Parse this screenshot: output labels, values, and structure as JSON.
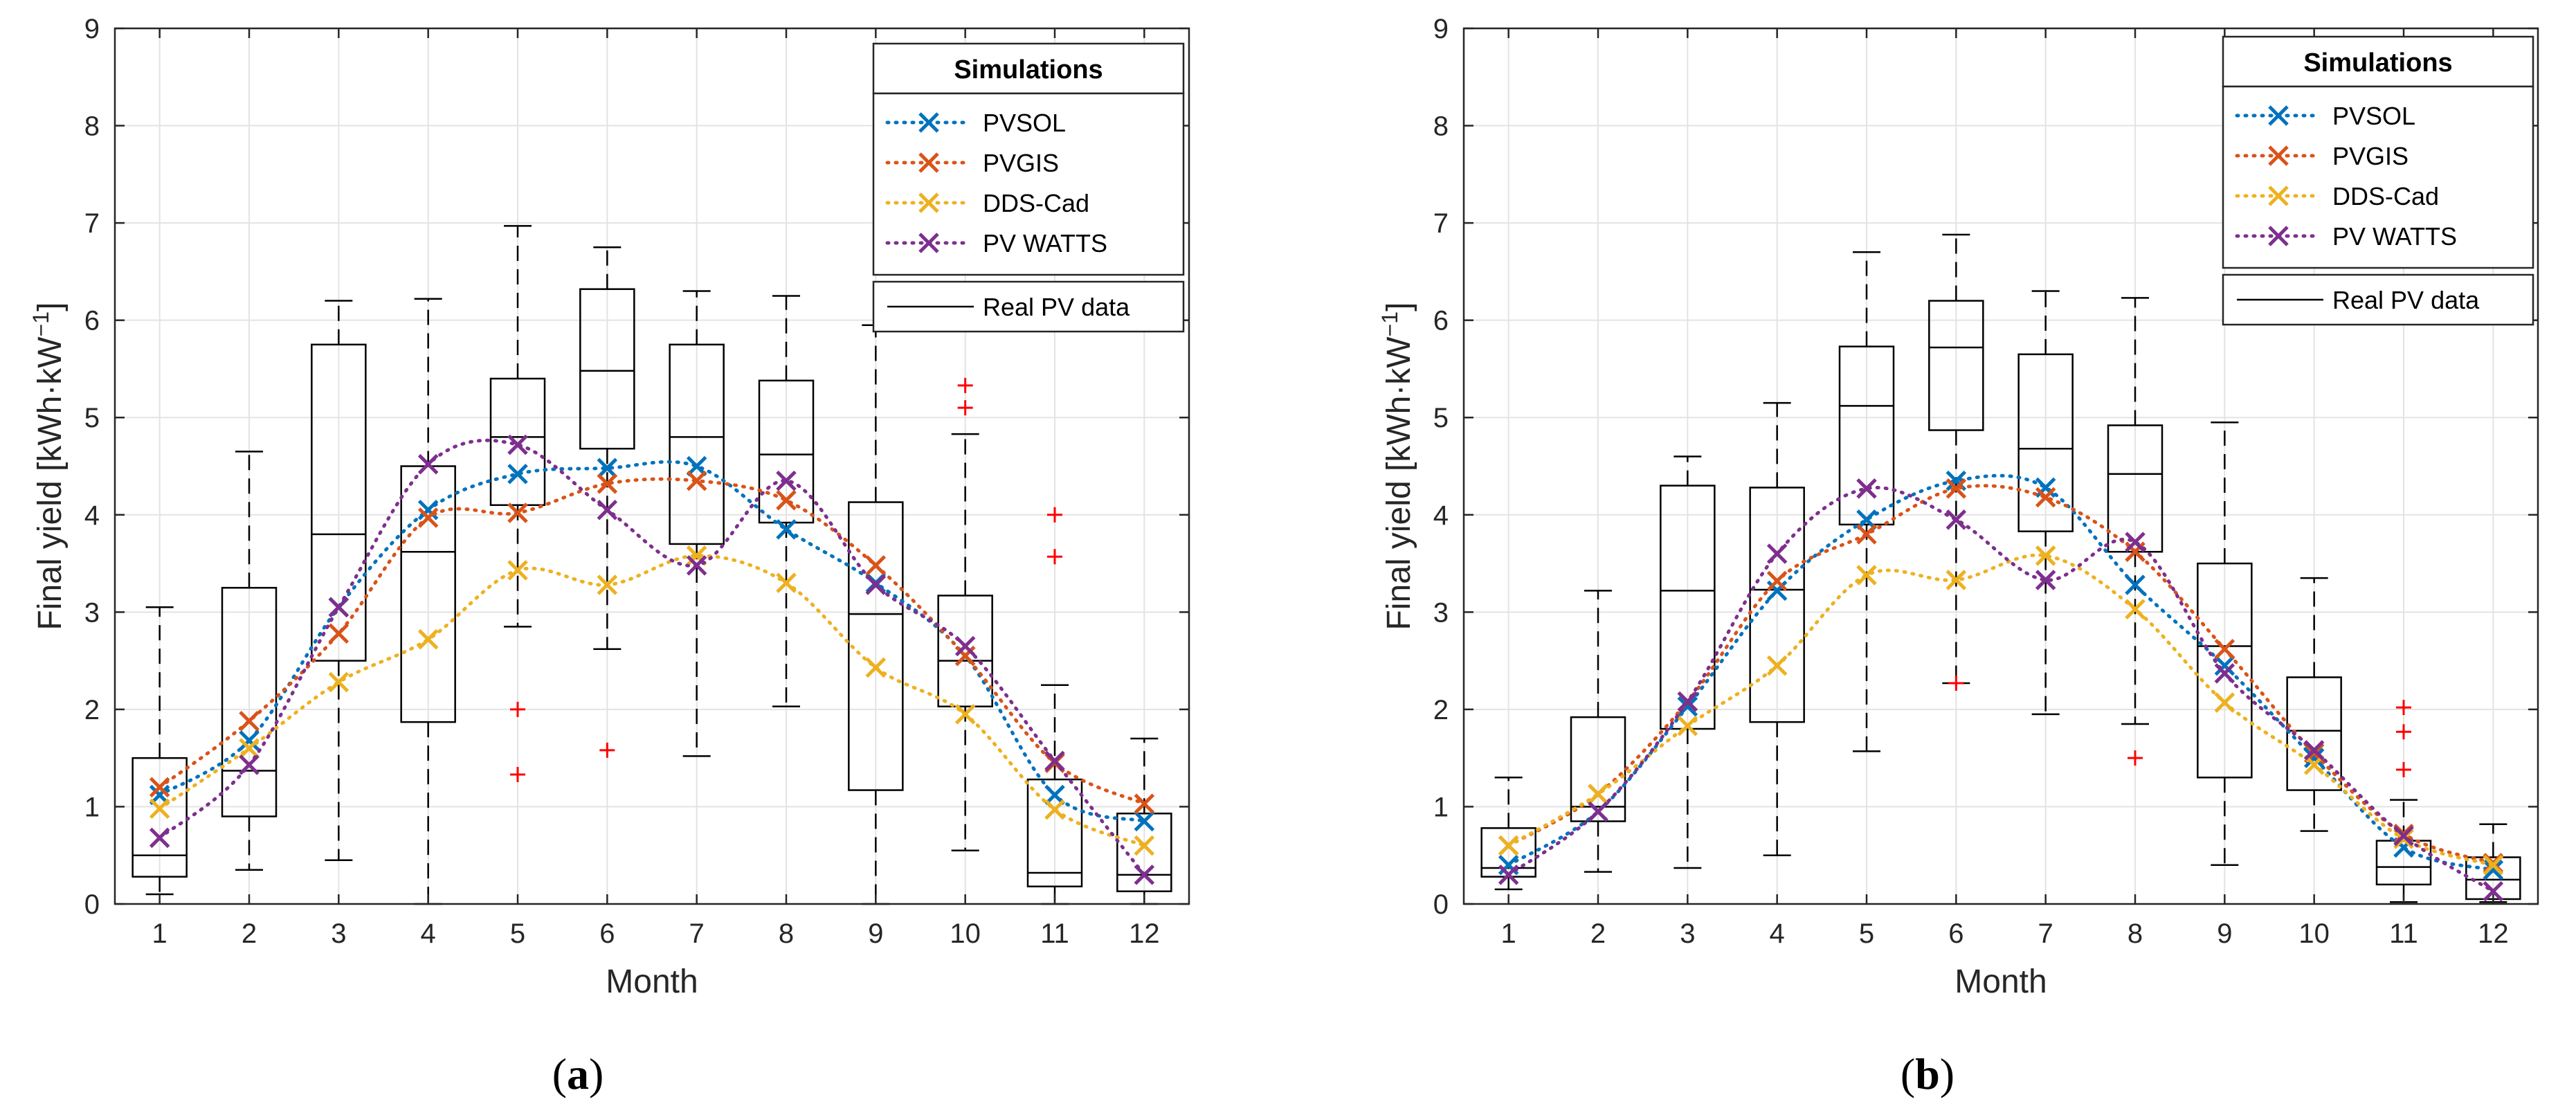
{
  "chart_data": [
    {
      "type": "box",
      "panel_label_prefix": "(",
      "panel_label": "a",
      "panel_label_suffix": ")",
      "xlabel": "Month",
      "ylabel": "Final yield [kWh·kW",
      "ylabel_sup": "−1",
      "ylabel_end": "]",
      "xticks": [
        "1",
        "2",
        "3",
        "4",
        "5",
        "6",
        "7",
        "8",
        "9",
        "10",
        "11",
        "12"
      ],
      "yticks": [
        "0",
        "1",
        "2",
        "3",
        "4",
        "5",
        "6",
        "7",
        "8",
        "9"
      ],
      "ylim": [
        0,
        9
      ],
      "grid": true,
      "legend": {
        "title": "Simulations",
        "position": "top-right",
        "entries": [
          "PVSOL",
          "PVGIS",
          "DDS-Cad",
          "PV WATTS"
        ],
        "real_label": "Real PV data"
      },
      "boxes": [
        {
          "month": 1,
          "lw": 0.1,
          "q1": 0.28,
          "med": 0.5,
          "q3": 1.5,
          "uw": 3.05,
          "outliers": []
        },
        {
          "month": 2,
          "lw": 0.35,
          "q1": 0.9,
          "med": 1.37,
          "q3": 3.25,
          "uw": 4.65,
          "outliers": []
        },
        {
          "month": 3,
          "lw": 0.45,
          "q1": 2.5,
          "med": 3.8,
          "q3": 5.75,
          "uw": 6.2,
          "outliers": []
        },
        {
          "month": 4,
          "lw": 0.0,
          "q1": 1.87,
          "med": 3.62,
          "q3": 4.5,
          "uw": 6.22,
          "outliers": []
        },
        {
          "month": 5,
          "lw": 2.85,
          "q1": 4.1,
          "med": 4.8,
          "q3": 5.4,
          "uw": 6.97,
          "outliers": [
            2.0,
            1.33
          ]
        },
        {
          "month": 6,
          "lw": 2.62,
          "q1": 4.68,
          "med": 5.48,
          "q3": 6.32,
          "uw": 6.75,
          "outliers": [
            1.58
          ]
        },
        {
          "month": 7,
          "lw": 1.52,
          "q1": 3.7,
          "med": 4.8,
          "q3": 5.75,
          "uw": 6.3,
          "outliers": []
        },
        {
          "month": 8,
          "lw": 2.03,
          "q1": 3.92,
          "med": 4.62,
          "q3": 5.38,
          "uw": 6.25,
          "outliers": []
        },
        {
          "month": 9,
          "lw": 0.0,
          "q1": 1.17,
          "med": 2.98,
          "q3": 4.13,
          "uw": 5.95,
          "outliers": []
        },
        {
          "month": 10,
          "lw": 0.55,
          "q1": 2.03,
          "med": 2.5,
          "q3": 3.17,
          "uw": 4.83,
          "outliers": [
            5.33,
            5.1
          ]
        },
        {
          "month": 11,
          "lw": 0.0,
          "q1": 0.18,
          "med": 0.32,
          "q3": 1.28,
          "uw": 2.25,
          "outliers": [
            4.0,
            3.57
          ]
        },
        {
          "month": 12,
          "lw": 0.0,
          "q1": 0.13,
          "med": 0.3,
          "q3": 0.93,
          "uw": 1.7,
          "outliers": []
        }
      ],
      "series": [
        {
          "name": "PVSOL",
          "color": "#0072BD",
          "values": [
            1.12,
            1.68,
            3.05,
            4.05,
            4.42,
            4.48,
            4.5,
            3.85,
            3.3,
            2.55,
            1.12,
            0.85
          ]
        },
        {
          "name": "PVGIS",
          "color": "#D95319",
          "values": [
            1.2,
            1.88,
            2.78,
            3.97,
            4.02,
            4.32,
            4.35,
            4.15,
            3.48,
            2.55,
            1.45,
            1.03
          ]
        },
        {
          "name": "DDS-Cad",
          "color": "#EDB120",
          "values": [
            0.98,
            1.6,
            2.28,
            2.72,
            3.43,
            3.28,
            3.58,
            3.3,
            2.43,
            1.95,
            0.97,
            0.6
          ]
        },
        {
          "name": "PV WATTS",
          "color": "#7E2F8E",
          "values": [
            0.68,
            1.43,
            3.05,
            4.52,
            4.72,
            4.05,
            3.48,
            4.35,
            3.28,
            2.65,
            1.47,
            0.3
          ]
        }
      ]
    },
    {
      "type": "box",
      "panel_label_prefix": "(",
      "panel_label": "b",
      "panel_label_suffix": ")",
      "xlabel": "Month",
      "ylabel": "Final yield [kWh·kW",
      "ylabel_sup": "−1",
      "ylabel_end": "]",
      "xticks": [
        "1",
        "2",
        "3",
        "4",
        "5",
        "6",
        "7",
        "8",
        "9",
        "10",
        "11",
        "12"
      ],
      "yticks": [
        "0",
        "1",
        "2",
        "3",
        "4",
        "5",
        "6",
        "7",
        "8",
        "9"
      ],
      "ylim": [
        0,
        9
      ],
      "grid": true,
      "legend": {
        "title": "Simulations",
        "position": "top-right",
        "entries": [
          "PVSOL",
          "PVGIS",
          "DDS-Cad",
          "PV WATTS"
        ],
        "real_label": "Real PV data"
      },
      "boxes": [
        {
          "month": 1,
          "lw": 0.15,
          "q1": 0.28,
          "med": 0.37,
          "q3": 0.78,
          "uw": 1.3,
          "outliers": []
        },
        {
          "month": 2,
          "lw": 0.33,
          "q1": 0.85,
          "med": 1.0,
          "q3": 1.92,
          "uw": 3.22,
          "outliers": []
        },
        {
          "month": 3,
          "lw": 0.37,
          "q1": 1.8,
          "med": 3.22,
          "q3": 4.3,
          "uw": 4.6,
          "outliers": []
        },
        {
          "month": 4,
          "lw": 0.5,
          "q1": 1.87,
          "med": 3.23,
          "q3": 4.28,
          "uw": 5.15,
          "outliers": []
        },
        {
          "month": 5,
          "lw": 1.57,
          "q1": 3.9,
          "med": 5.12,
          "q3": 5.73,
          "uw": 6.7,
          "outliers": []
        },
        {
          "month": 6,
          "lw": 2.27,
          "q1": 4.87,
          "med": 5.72,
          "q3": 6.2,
          "uw": 6.88,
          "outliers": [
            2.27
          ]
        },
        {
          "month": 7,
          "lw": 1.95,
          "q1": 3.83,
          "med": 4.68,
          "q3": 5.65,
          "uw": 6.3,
          "outliers": []
        },
        {
          "month": 8,
          "lw": 1.85,
          "q1": 3.62,
          "med": 4.42,
          "q3": 4.92,
          "uw": 6.23,
          "outliers": [
            1.5
          ]
        },
        {
          "month": 9,
          "lw": 0.4,
          "q1": 1.3,
          "med": 2.65,
          "q3": 3.5,
          "uw": 4.95,
          "outliers": []
        },
        {
          "month": 10,
          "lw": 0.75,
          "q1": 1.17,
          "med": 1.78,
          "q3": 2.33,
          "uw": 3.35,
          "outliers": []
        },
        {
          "month": 11,
          "lw": 0.02,
          "q1": 0.2,
          "med": 0.38,
          "q3": 0.65,
          "uw": 1.07,
          "outliers": [
            2.02,
            1.77,
            1.38
          ]
        },
        {
          "month": 12,
          "lw": 0.02,
          "q1": 0.05,
          "med": 0.25,
          "q3": 0.48,
          "uw": 0.82,
          "outliers": []
        }
      ],
      "series": [
        {
          "name": "PVSOL",
          "color": "#0072BD",
          "values": [
            0.4,
            0.95,
            2.03,
            3.22,
            3.95,
            4.35,
            4.28,
            3.28,
            2.45,
            1.5,
            0.58,
            0.35
          ]
        },
        {
          "name": "PVGIS",
          "color": "#D95319",
          "values": [
            0.6,
            1.13,
            2.08,
            3.32,
            3.8,
            4.27,
            4.18,
            3.62,
            2.62,
            1.55,
            0.72,
            0.42
          ]
        },
        {
          "name": "DDS-Cad",
          "color": "#EDB120",
          "values": [
            0.6,
            1.13,
            1.83,
            2.45,
            3.38,
            3.33,
            3.58,
            3.03,
            2.07,
            1.43,
            0.67,
            0.4
          ]
        },
        {
          "name": "PV WATTS",
          "color": "#7E2F8E",
          "values": [
            0.3,
            0.95,
            2.08,
            3.6,
            4.27,
            3.95,
            3.33,
            3.72,
            2.37,
            1.58,
            0.7,
            0.13
          ]
        }
      ]
    }
  ]
}
